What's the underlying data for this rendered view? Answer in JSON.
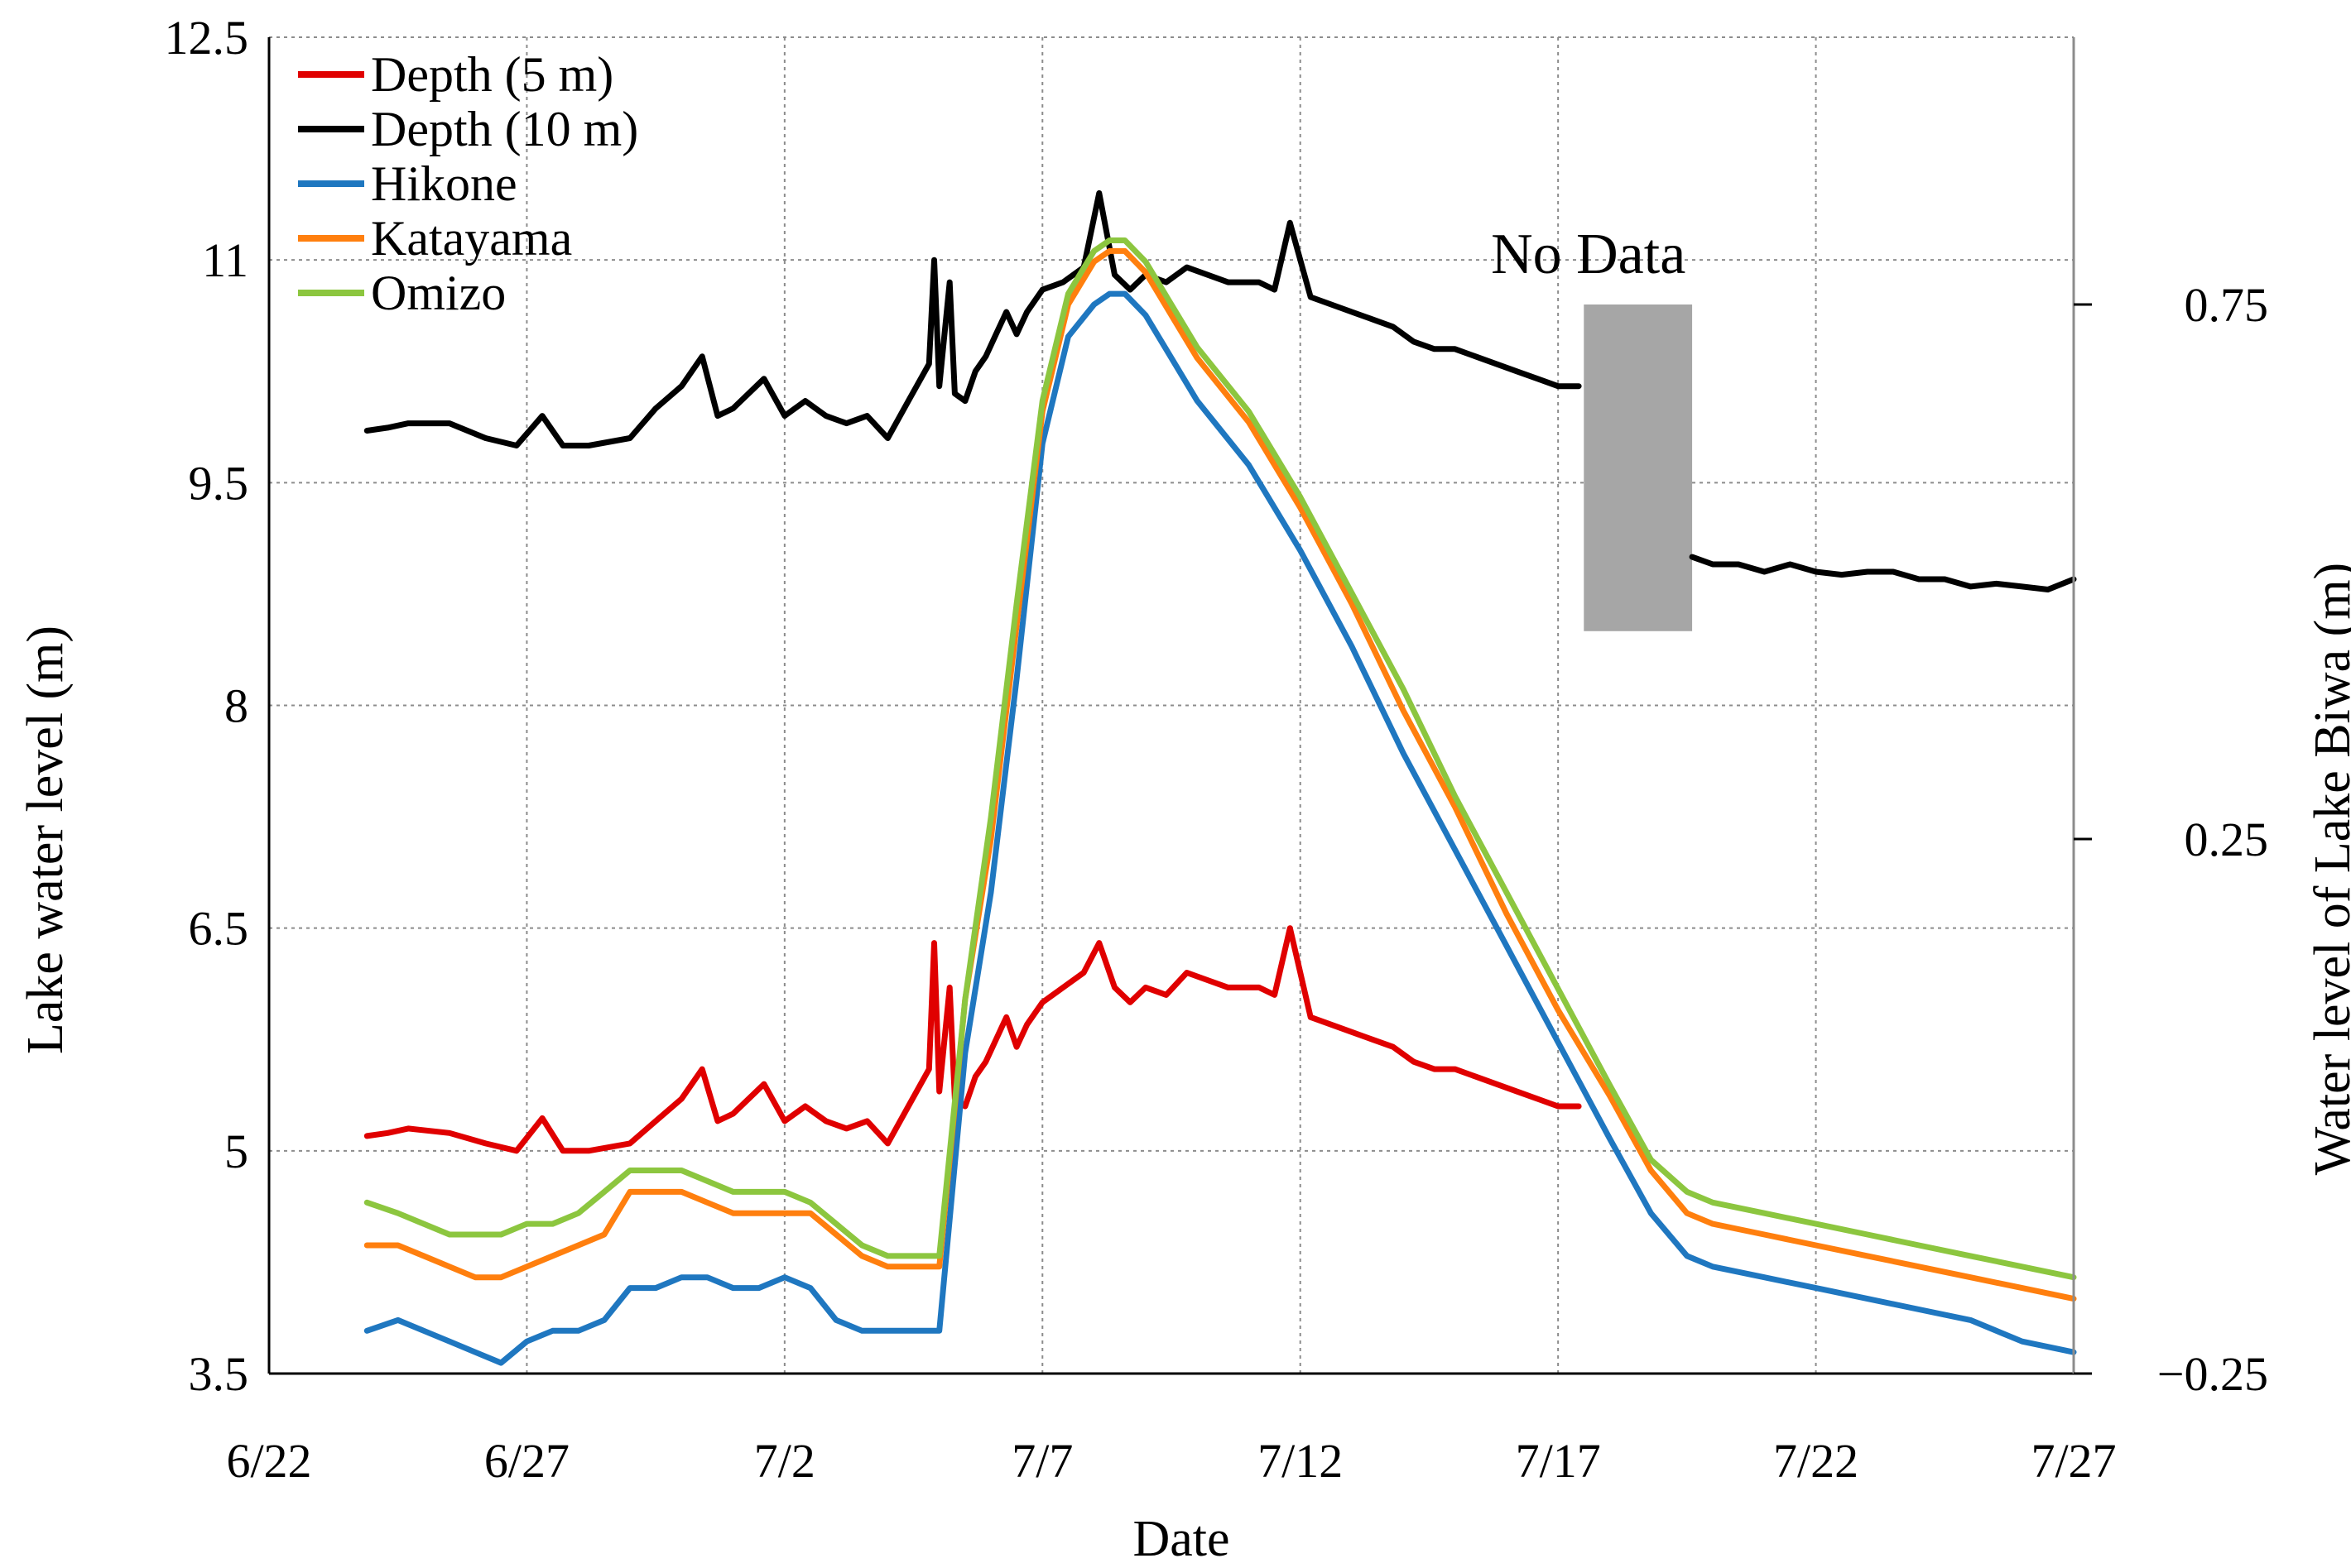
{
  "chart_data": {
    "type": "line",
    "title": "",
    "xlabel": "Date",
    "ylabel": "Lake water level (m)",
    "y2label": "Water level of Lake Biwa (m)",
    "x_ticks": [
      "6/22",
      "6/27",
      "7/2",
      "7/7",
      "7/12",
      "7/17",
      "7/22",
      "7/27"
    ],
    "xlim_days": [
      0,
      35
    ],
    "ylim": [
      3.5,
      12.5
    ],
    "y_ticks": [
      "3.5",
      "5",
      "6.5",
      "8",
      "9.5",
      "11",
      "12.5"
    ],
    "y2lim": [
      -0.25,
      1.0
    ],
    "y2_ticks": [
      "−0.25",
      "0.25",
      "0.75"
    ],
    "grid": true,
    "legend_position": "top-left",
    "annotations": [
      {
        "text": "No Data",
        "x_start_day": 25.5,
        "x_end_day": 27.6,
        "y_from": 8.5,
        "y_to": 10.7,
        "color": "#a6a6a6"
      }
    ],
    "series": [
      {
        "name": "Depth (5 m)",
        "axis": "left",
        "color": "#e00000",
        "x": [
          1.9,
          2.3,
          2.7,
          3.5,
          4.2,
          4.8,
          5.3,
          5.7,
          6.2,
          7.0,
          7.5,
          8.0,
          8.4,
          8.7,
          9.0,
          9.6,
          10.0,
          10.4,
          10.8,
          11.2,
          11.6,
          12.0,
          12.4,
          12.8,
          12.9,
          13.0,
          13.2,
          13.3,
          13.5,
          13.7,
          13.9,
          14.1,
          14.3,
          14.5,
          14.7,
          15.0,
          15.4,
          15.8,
          16.1,
          16.4,
          16.7,
          17.0,
          17.4,
          17.8,
          18.2,
          18.6,
          18.9,
          19.2,
          19.5,
          19.8,
          20.2,
          20.6,
          21.0,
          21.4,
          21.8,
          22.2,
          22.6,
          23.0,
          23.4,
          23.8,
          24.2,
          24.6,
          25.0,
          25.4
        ],
        "values": [
          5.1,
          5.12,
          5.15,
          5.12,
          5.05,
          5.0,
          5.22,
          5.0,
          5.0,
          5.05,
          5.2,
          5.35,
          5.55,
          5.2,
          5.25,
          5.45,
          5.2,
          5.3,
          5.2,
          5.15,
          5.2,
          5.05,
          5.3,
          5.55,
          6.4,
          5.4,
          6.1,
          5.35,
          5.3,
          5.5,
          5.6,
          5.75,
          5.9,
          5.7,
          5.85,
          6.0,
          6.1,
          6.2,
          6.4,
          6.1,
          6.0,
          6.1,
          6.05,
          6.2,
          6.15,
          6.1,
          6.1,
          6.1,
          6.05,
          6.5,
          5.9,
          5.85,
          5.8,
          5.75,
          5.7,
          5.6,
          5.55,
          5.55,
          5.5,
          5.45,
          5.4,
          5.35,
          5.3,
          5.3
        ]
      },
      {
        "name": "Depth (10 m)",
        "axis": "left",
        "color": "#000000",
        "x": [
          1.9,
          2.3,
          2.7,
          3.5,
          4.2,
          4.8,
          5.3,
          5.7,
          6.2,
          7.0,
          7.5,
          8.0,
          8.4,
          8.7,
          9.0,
          9.6,
          10.0,
          10.4,
          10.8,
          11.2,
          11.6,
          12.0,
          12.4,
          12.8,
          12.9,
          13.0,
          13.2,
          13.3,
          13.5,
          13.7,
          13.9,
          14.1,
          14.3,
          14.5,
          14.7,
          15.0,
          15.4,
          15.8,
          16.1,
          16.4,
          16.7,
          17.0,
          17.4,
          17.8,
          18.2,
          18.6,
          18.9,
          19.2,
          19.5,
          19.8,
          20.2,
          20.6,
          21.0,
          21.4,
          21.8,
          22.2,
          22.6,
          23.0,
          23.4,
          23.8,
          24.2,
          24.6,
          25.0,
          25.4,
          27.6,
          28.0,
          28.5,
          29.0,
          29.5,
          30.0,
          30.5,
          31.0,
          31.5,
          32.0,
          32.5,
          33.0,
          33.5,
          34.0,
          34.5,
          35.0
        ],
        "values": [
          9.85,
          9.87,
          9.9,
          9.9,
          9.8,
          9.75,
          9.95,
          9.75,
          9.75,
          9.8,
          10.0,
          10.15,
          10.35,
          9.95,
          10.0,
          10.2,
          9.95,
          10.05,
          9.95,
          9.9,
          9.95,
          9.8,
          10.05,
          10.3,
          11.0,
          10.15,
          10.85,
          10.1,
          10.05,
          10.25,
          10.35,
          10.5,
          10.65,
          10.5,
          10.65,
          10.8,
          10.85,
          10.95,
          11.45,
          10.9,
          10.8,
          10.9,
          10.85,
          10.95,
          10.9,
          10.85,
          10.85,
          10.85,
          10.8,
          11.25,
          10.75,
          10.7,
          10.65,
          10.6,
          10.55,
          10.45,
          10.4,
          10.4,
          10.35,
          10.3,
          10.25,
          10.2,
          10.15,
          10.15,
          9.0,
          8.95,
          8.95,
          8.9,
          8.95,
          8.9,
          8.88,
          8.9,
          8.9,
          8.85,
          8.85,
          8.8,
          8.82,
          8.8,
          8.78,
          8.85
        ]
      },
      {
        "name": "Hikone",
        "axis": "right",
        "color": "#1f77c0",
        "x": [
          1.9,
          2.5,
          3.0,
          3.5,
          4.0,
          4.5,
          5.0,
          5.5,
          6.0,
          6.5,
          7.0,
          7.5,
          8.0,
          8.5,
          9.0,
          9.5,
          10.0,
          10.5,
          11.0,
          11.5,
          12.0,
          12.5,
          13.0,
          13.5,
          14.0,
          14.5,
          15.0,
          15.5,
          16.0,
          16.3,
          16.6,
          17.0,
          17.5,
          18.0,
          19.0,
          20.0,
          21.0,
          22.0,
          23.0,
          24.0,
          25.0,
          26.0,
          26.8,
          27.5,
          28.0,
          29.0,
          30.0,
          31.0,
          32.0,
          33.0,
          34.0,
          35.0
        ],
        "values": [
          -0.21,
          -0.2,
          -0.21,
          -0.22,
          -0.23,
          -0.24,
          -0.22,
          -0.21,
          -0.21,
          -0.2,
          -0.17,
          -0.17,
          -0.16,
          -0.16,
          -0.17,
          -0.17,
          -0.16,
          -0.17,
          -0.2,
          -0.21,
          -0.21,
          -0.21,
          -0.21,
          0.05,
          0.2,
          0.4,
          0.62,
          0.72,
          0.75,
          0.76,
          0.76,
          0.74,
          0.7,
          0.66,
          0.6,
          0.52,
          0.43,
          0.33,
          0.24,
          0.15,
          0.06,
          -0.03,
          -0.1,
          -0.14,
          -0.15,
          -0.16,
          -0.17,
          -0.18,
          -0.19,
          -0.2,
          -0.22,
          -0.23
        ]
      },
      {
        "name": "Katayama",
        "axis": "right",
        "color": "#ff7f0e",
        "x": [
          1.9,
          2.5,
          3.0,
          3.5,
          4.0,
          4.5,
          5.0,
          5.5,
          6.0,
          6.5,
          7.0,
          7.5,
          8.0,
          8.5,
          9.0,
          9.5,
          10.0,
          10.5,
          11.0,
          11.5,
          12.0,
          12.5,
          13.0,
          13.5,
          14.0,
          14.5,
          15.0,
          15.5,
          16.0,
          16.3,
          16.6,
          17.0,
          17.5,
          18.0,
          19.0,
          20.0,
          21.0,
          22.0,
          23.0,
          24.0,
          25.0,
          26.0,
          26.8,
          27.5,
          28.0,
          29.0,
          30.0,
          31.0,
          32.0,
          33.0,
          34.0,
          35.0
        ],
        "values": [
          -0.13,
          -0.13,
          -0.14,
          -0.15,
          -0.16,
          -0.16,
          -0.15,
          -0.14,
          -0.13,
          -0.12,
          -0.08,
          -0.08,
          -0.08,
          -0.09,
          -0.1,
          -0.1,
          -0.1,
          -0.1,
          -0.12,
          -0.14,
          -0.15,
          -0.15,
          -0.15,
          0.1,
          0.25,
          0.45,
          0.65,
          0.75,
          0.79,
          0.8,
          0.8,
          0.78,
          0.74,
          0.7,
          0.64,
          0.56,
          0.47,
          0.37,
          0.28,
          0.18,
          0.09,
          0.01,
          -0.06,
          -0.1,
          -0.11,
          -0.12,
          -0.13,
          -0.14,
          -0.15,
          -0.16,
          -0.17,
          -0.18
        ]
      },
      {
        "name": "Omizo",
        "axis": "right",
        "color": "#8cc63f",
        "x": [
          1.9,
          2.5,
          3.0,
          3.5,
          4.0,
          4.5,
          5.0,
          5.5,
          6.0,
          6.5,
          7.0,
          7.5,
          8.0,
          8.5,
          9.0,
          9.5,
          10.0,
          10.5,
          11.0,
          11.5,
          12.0,
          12.5,
          13.0,
          13.5,
          14.0,
          14.5,
          15.0,
          15.5,
          16.0,
          16.3,
          16.6,
          17.0,
          17.5,
          18.0,
          19.0,
          20.0,
          21.0,
          22.0,
          23.0,
          24.0,
          25.0,
          26.0,
          26.8,
          27.5,
          28.0,
          29.0,
          30.0,
          31.0,
          32.0,
          33.0,
          34.0,
          35.0
        ],
        "values": [
          -0.09,
          -0.1,
          -0.11,
          -0.12,
          -0.12,
          -0.12,
          -0.11,
          -0.11,
          -0.1,
          -0.08,
          -0.06,
          -0.06,
          -0.06,
          -0.07,
          -0.08,
          -0.08,
          -0.08,
          -0.09,
          -0.11,
          -0.13,
          -0.14,
          -0.14,
          -0.14,
          0.1,
          0.27,
          0.47,
          0.66,
          0.76,
          0.8,
          0.81,
          0.81,
          0.79,
          0.75,
          0.71,
          0.65,
          0.57,
          0.48,
          0.39,
          0.29,
          0.2,
          0.11,
          0.02,
          -0.05,
          -0.08,
          -0.09,
          -0.1,
          -0.11,
          -0.12,
          -0.13,
          -0.14,
          -0.15,
          -0.16
        ]
      }
    ]
  }
}
